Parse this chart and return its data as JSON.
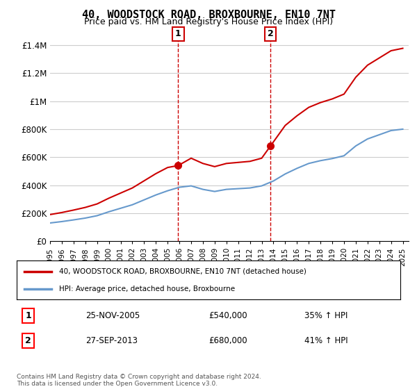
{
  "title": "40, WOODSTOCK ROAD, BROXBOURNE, EN10 7NT",
  "subtitle": "Price paid vs. HM Land Registry's House Price Index (HPI)",
  "ylabel_ticks": [
    "£0",
    "£200K",
    "£400K",
    "£600K",
    "£800K",
    "£1M",
    "£1.2M",
    "£1.4M"
  ],
  "ytick_values": [
    0,
    200000,
    400000,
    600000,
    800000,
    1000000,
    1200000,
    1400000
  ],
  "ylim": [
    0,
    1500000
  ],
  "sale1": {
    "date_num": 2005.9,
    "price": 540000,
    "label": "1",
    "date_str": "25-NOV-2005",
    "pct": "35%",
    "dir": "↑"
  },
  "sale2": {
    "date_num": 2013.75,
    "price": 680000,
    "label": "2",
    "date_str": "27-SEP-2013",
    "pct": "41%",
    "dir": "↑"
  },
  "legend_entry1": "40, WOODSTOCK ROAD, BROXBOURNE, EN10 7NT (detached house)",
  "legend_entry2": "HPI: Average price, detached house, Broxbourne",
  "footnote": "Contains HM Land Registry data © Crown copyright and database right 2024.\nThis data is licensed under the Open Government Licence v3.0.",
  "line_color_sale": "#cc0000",
  "line_color_hpi": "#6699cc",
  "background_color": "#ffffff",
  "grid_color": "#cccccc",
  "xlim_start": 1995.0,
  "xlim_end": 2025.5,
  "xtick_years": [
    1995,
    1996,
    1997,
    1998,
    1999,
    2000,
    2001,
    2002,
    2003,
    2004,
    2005,
    2006,
    2007,
    2008,
    2009,
    2010,
    2011,
    2012,
    2013,
    2014,
    2015,
    2016,
    2017,
    2018,
    2019,
    2020,
    2021,
    2022,
    2023,
    2024,
    2025
  ]
}
